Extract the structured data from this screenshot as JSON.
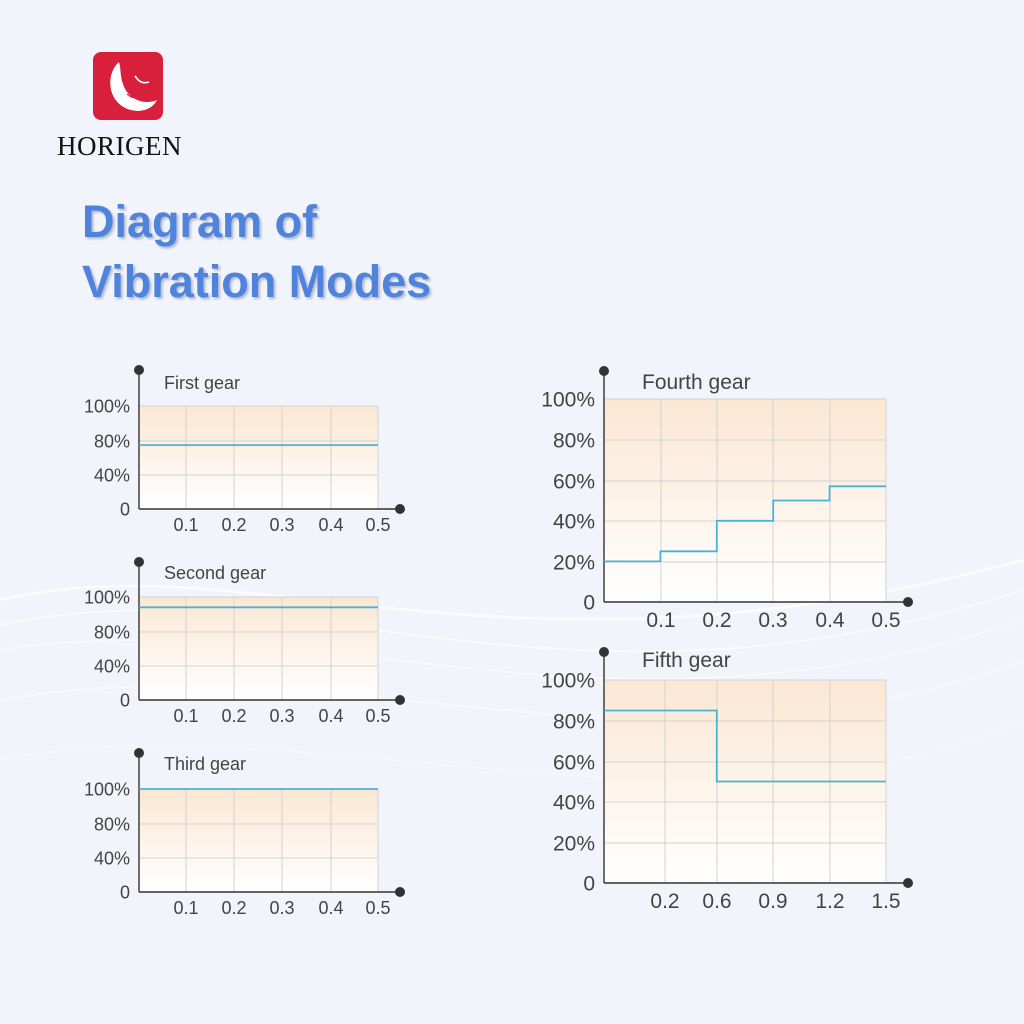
{
  "brand": {
    "name": "HORIGEN",
    "accent_color": "#d81f3c"
  },
  "title": {
    "line1": "Diagram of",
    "line2": "Vibration Modes",
    "color": "#4f83dc"
  },
  "chart_data": [
    {
      "type": "line",
      "title": "First gear",
      "x_ticks": [
        "0.1",
        "0.2",
        "0.3",
        "0.4",
        "0.5"
      ],
      "y_ticks": [
        "0",
        "40%",
        "80%",
        "100%"
      ],
      "series": [
        {
          "points": [
            [
              0,
              62
            ],
            [
              0.5,
              62
            ]
          ]
        }
      ],
      "line_color": "#49b3d3",
      "grid": true
    },
    {
      "type": "line",
      "title": "Second gear",
      "x_ticks": [
        "0.1",
        "0.2",
        "0.3",
        "0.4",
        "0.5"
      ],
      "y_ticks": [
        "0",
        "40%",
        "80%",
        "100%"
      ],
      "series": [
        {
          "points": [
            [
              0,
              90
            ],
            [
              0.5,
              90
            ]
          ]
        }
      ],
      "line_color": "#49b3d3",
      "grid": true
    },
    {
      "type": "line",
      "title": "Third gear",
      "x_ticks": [
        "0.1",
        "0.2",
        "0.3",
        "0.4",
        "0.5"
      ],
      "y_ticks": [
        "0",
        "40%",
        "80%",
        "100%"
      ],
      "series": [
        {
          "points": [
            [
              0,
              100
            ],
            [
              0.5,
              100
            ]
          ]
        }
      ],
      "line_color": "#49b3d3",
      "grid": true
    },
    {
      "type": "line",
      "title": "Fourth gear",
      "x_ticks": [
        "0.1",
        "0.2",
        "0.3",
        "0.4",
        "0.5"
      ],
      "y_ticks": [
        "0",
        "20%",
        "40%",
        "60%",
        "80%",
        "100%"
      ],
      "series": [
        {
          "points": [
            [
              0,
              20
            ],
            [
              0.1,
              20
            ],
            [
              0.1,
              25
            ],
            [
              0.2,
              25
            ],
            [
              0.2,
              40
            ],
            [
              0.3,
              40
            ],
            [
              0.3,
              50
            ],
            [
              0.4,
              50
            ],
            [
              0.4,
              57
            ],
            [
              0.5,
              57
            ]
          ]
        }
      ],
      "line_color": "#49b3d3",
      "grid": true
    },
    {
      "type": "line",
      "title": "Fifth gear",
      "x_ticks": [
        "0.2",
        "0.6",
        "0.9",
        "1.2",
        "1.5"
      ],
      "y_ticks": [
        "0",
        "20%",
        "40%",
        "60%",
        "80%",
        "100%"
      ],
      "series": [
        {
          "points": [
            [
              0,
              85
            ],
            [
              0.6,
              85
            ],
            [
              0.6,
              50
            ],
            [
              1.5,
              50
            ]
          ]
        }
      ],
      "line_color": "#49b3d3",
      "grid": true
    }
  ]
}
